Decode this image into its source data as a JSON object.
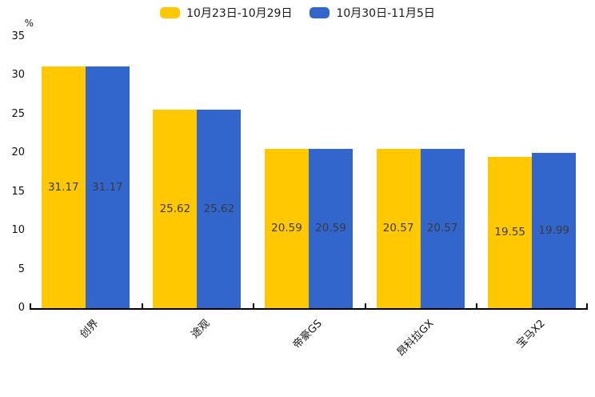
{
  "chart_data": {
    "type": "bar",
    "title": "",
    "ylabel": "%",
    "categories": [
      "创界",
      "途观",
      "帝豪GS",
      "昂科拉GX",
      "宝马X2"
    ],
    "series": [
      {
        "name": "10月23日-10月29日",
        "color": "#FFC800",
        "values": [
          31.17,
          25.62,
          20.59,
          20.57,
          19.55
        ]
      },
      {
        "name": "10月30日-11月5日",
        "color": "#3366CC",
        "values": [
          31.17,
          25.62,
          20.59,
          20.57,
          19.99
        ]
      }
    ],
    "ylim": [
      0,
      35
    ],
    "ytick_step": 5,
    "grid": false,
    "legend_position": "top-center",
    "value_labels": "centered-inside",
    "value_label_color": "#3a3a3a",
    "axis_color": "#000000",
    "value_decimals": 2
  }
}
